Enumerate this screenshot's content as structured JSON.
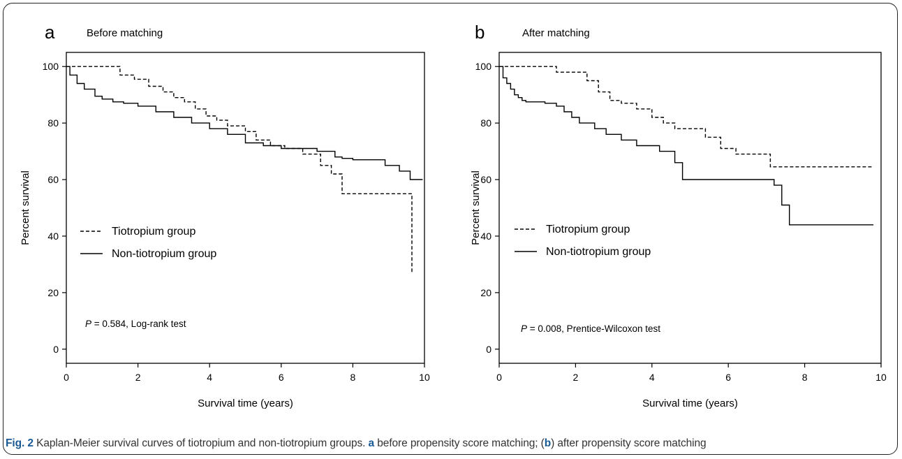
{
  "caption": {
    "label": "Fig. 2",
    "p1": " Kaplan-Meier survival curves of tiotropium and non-tiotropium groups. ",
    "b1": "a",
    "p2": " before propensity score matching; (",
    "b2": "b",
    "p3": ") after propensity score matching"
  },
  "chart_data": [
    {
      "type": "line",
      "panel_label": "a",
      "title": "Before matching",
      "xlabel": "Survival time (years)",
      "ylabel": "Percent survival",
      "xlim": [
        0,
        10
      ],
      "ylim": [
        0,
        100
      ],
      "xticks": [
        0,
        2,
        4,
        6,
        8,
        10
      ],
      "yticks": [
        0,
        20,
        40,
        60,
        80,
        100
      ],
      "legend_position": "center-left",
      "annotation": {
        "italic": "P",
        "text": " = 0.584, Log-rank test"
      },
      "series": [
        {
          "name": "Tiotropium group",
          "style": "dashed",
          "x": [
            0,
            1.4,
            1.5,
            1.9,
            2.3,
            2.7,
            3.0,
            3.3,
            3.6,
            3.9,
            4.2,
            4.5,
            5.0,
            5.3,
            5.7,
            6.1,
            6.6,
            7.1,
            7.4,
            7.7,
            8.4,
            9.65
          ],
          "y": [
            100,
            100,
            97,
            95.5,
            93,
            91,
            89,
            87.5,
            85,
            82.5,
            81,
            79,
            77,
            74,
            72,
            71,
            69,
            65,
            62,
            55,
            55,
            27
          ]
        },
        {
          "name": "Non-tiotropium group",
          "style": "solid",
          "x": [
            0,
            0.1,
            0.3,
            0.5,
            0.8,
            1.0,
            1.3,
            1.6,
            2.0,
            2.5,
            3.0,
            3.5,
            4.0,
            4.5,
            5.0,
            5.5,
            6.0,
            6.5,
            7.0,
            7.5,
            7.7,
            8.0,
            8.5,
            8.9,
            9.3,
            9.6,
            9.95
          ],
          "y": [
            100,
            97,
            94,
            92,
            89.5,
            88.5,
            87.5,
            87,
            86,
            84,
            82,
            80,
            78,
            76,
            73,
            72,
            71,
            71,
            70,
            68,
            67.5,
            67,
            67,
            65,
            63,
            60,
            60
          ]
        }
      ]
    },
    {
      "type": "line",
      "panel_label": "b",
      "title": "After matching",
      "xlabel": "Survival time (years)",
      "ylabel": "Percent survival",
      "xlim": [
        0,
        10
      ],
      "ylim": [
        0,
        100
      ],
      "xticks": [
        0,
        2,
        4,
        6,
        8,
        10
      ],
      "yticks": [
        0,
        20,
        40,
        60,
        80,
        100
      ],
      "legend_position": "center-left",
      "annotation": {
        "italic": "P",
        "text": " = 0.008, Prentice-Wilcoxon test"
      },
      "series": [
        {
          "name": "Tiotropium group",
          "style": "dashed",
          "x": [
            0,
            1.4,
            1.5,
            2.0,
            2.3,
            2.6,
            2.9,
            3.2,
            3.6,
            4.0,
            4.3,
            4.6,
            5.1,
            5.4,
            5.8,
            6.2,
            7.0,
            7.1,
            9.8
          ],
          "y": [
            100,
            100,
            98,
            98,
            95,
            91,
            88,
            87,
            85,
            82,
            80,
            78,
            78,
            75,
            71,
            69,
            69,
            64.5,
            64.5
          ]
        },
        {
          "name": "Non-tiotropium group",
          "style": "solid",
          "x": [
            0,
            0.1,
            0.2,
            0.3,
            0.4,
            0.5,
            0.6,
            0.7,
            1.0,
            1.2,
            1.5,
            1.7,
            1.9,
            2.1,
            2.5,
            2.8,
            3.2,
            3.6,
            4.2,
            4.6,
            4.8,
            7.2,
            7.4,
            7.6,
            9.8
          ],
          "y": [
            100,
            96,
            94,
            92,
            90,
            89,
            88,
            87.5,
            87.5,
            87,
            86,
            84,
            82,
            80,
            78,
            76,
            74,
            72,
            70,
            66,
            60,
            58,
            51,
            44,
            44
          ]
        }
      ]
    }
  ]
}
